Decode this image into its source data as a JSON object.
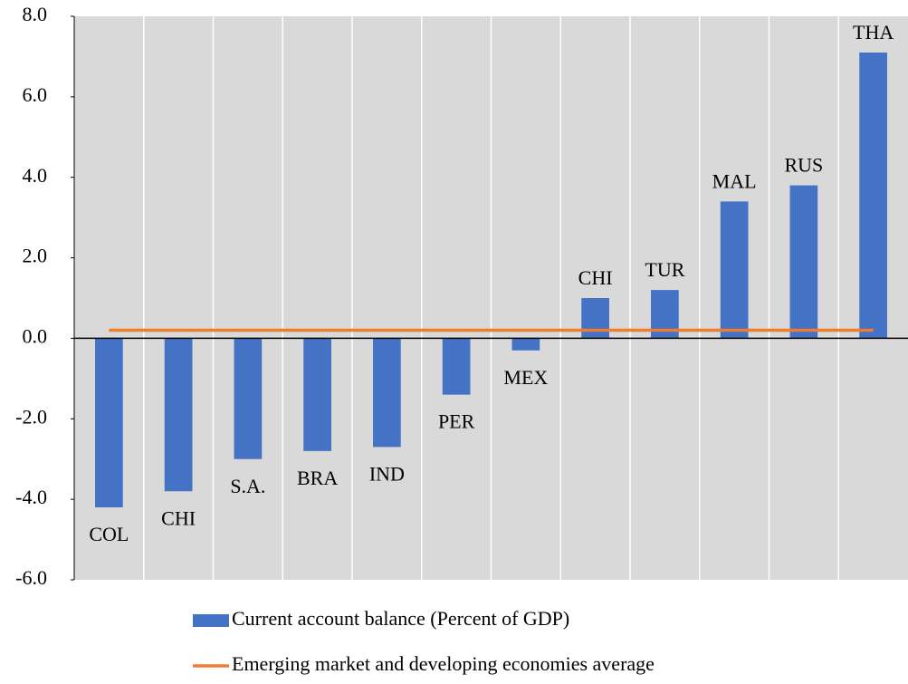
{
  "chart_data": {
    "type": "bar",
    "categories": [
      "COL",
      "CHI",
      "S.A.",
      "BRA",
      "IND",
      "PER",
      "MEX",
      "CHI",
      "TUR",
      "MAL",
      "RUS",
      "THA"
    ],
    "series": [
      {
        "name": "Current account balance (Percent of GDP)",
        "type": "bar",
        "color": "#4472c4",
        "values": [
          -4.2,
          -3.8,
          -3.0,
          -2.8,
          -2.7,
          -1.4,
          -0.3,
          1.0,
          1.2,
          3.4,
          3.8,
          7.1
        ]
      },
      {
        "name": "Emerging market and developing economies average",
        "type": "line",
        "color": "#ed7d31",
        "values": [
          0.2,
          0.2,
          0.2,
          0.2,
          0.2,
          0.2,
          0.2,
          0.2,
          0.2,
          0.2,
          0.2,
          0.2
        ]
      }
    ],
    "ylim": [
      -6,
      8
    ],
    "yticks": [
      {
        "value": -6,
        "label": "-6.0"
      },
      {
        "value": -4,
        "label": "-4.0"
      },
      {
        "value": -2,
        "label": "-2.0"
      },
      {
        "value": 0,
        "label": "0.0"
      },
      {
        "value": 2,
        "label": "2.0"
      },
      {
        "value": 4,
        "label": "4.0"
      },
      {
        "value": 6,
        "label": "6.0"
      },
      {
        "value": 8,
        "label": "8.0"
      }
    ],
    "background": "#d9d9d9"
  }
}
